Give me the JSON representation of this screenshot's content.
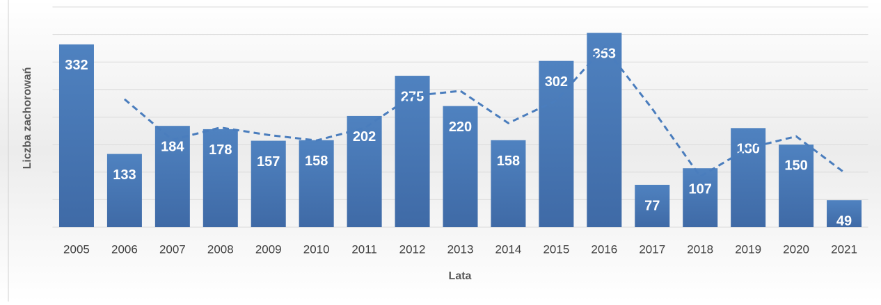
{
  "chart_data": {
    "type": "bar",
    "x_label": "Lata",
    "y_label": "Liczba zachorowań",
    "categories": [
      "2005",
      "2006",
      "2007",
      "2008",
      "2009",
      "2010",
      "2011",
      "2012",
      "2013",
      "2014",
      "2015",
      "2016",
      "2017",
      "2018",
      "2019",
      "2020",
      "2021"
    ],
    "values": [
      332,
      133,
      184,
      178,
      157,
      158,
      202,
      275,
      220,
      158,
      302,
      353,
      77,
      107,
      180,
      150,
      49
    ],
    "color": "#4a7dbd",
    "trendline": {
      "color": "#4a7dbd",
      "values": [
        null,
        232.5,
        158.5,
        181,
        167.5,
        157.5,
        180,
        238.5,
        247.5,
        189,
        230,
        327.5,
        215,
        92,
        143.5,
        165,
        99.5
      ]
    },
    "ylim": [
      0,
      400
    ],
    "yticks": [
      0,
      50,
      100,
      150,
      200,
      250,
      300,
      350,
      400
    ],
    "grid": true
  }
}
